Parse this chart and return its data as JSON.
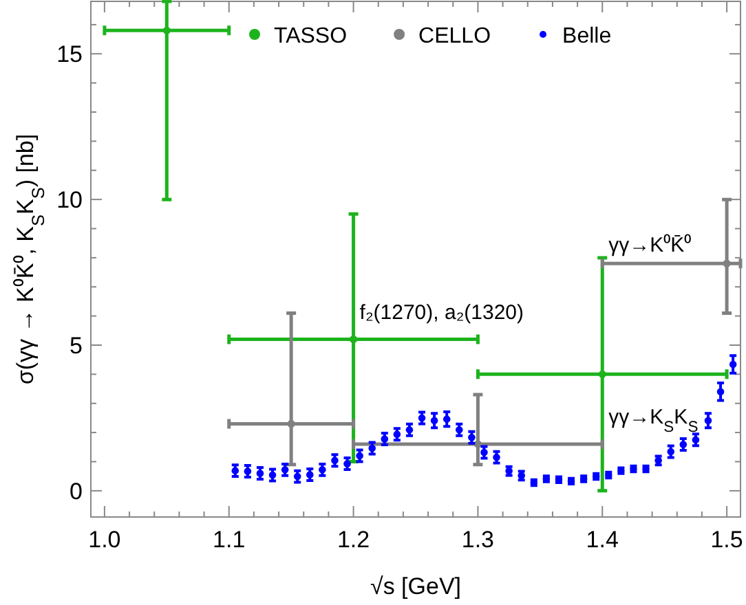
{
  "chart_data": {
    "type": "scatter",
    "xlabel": "√s [GeV]",
    "ylabel": "σ(γγ → K⁰K̄⁰, K$_{S}$K$_{S}$) [nb]",
    "annotations": [
      "f₂(1270),  a₂(1320)",
      "γγ→K⁰K̄⁰",
      "γγ→K$_{S}$K$_{S}$"
    ],
    "xlim": [
      0.989,
      1.511
    ],
    "ylim": [
      -0.9,
      16.8
    ],
    "xticks": [
      {
        "value": 1.0,
        "label": "1.0"
      },
      {
        "value": 1.02,
        "label": null
      },
      {
        "value": 1.04,
        "label": null
      },
      {
        "value": 1.06,
        "label": null
      },
      {
        "value": 1.08,
        "label": null
      },
      {
        "value": 1.1,
        "label": "1.1"
      },
      {
        "value": 1.12,
        "label": null
      },
      {
        "value": 1.14,
        "label": null
      },
      {
        "value": 1.16,
        "label": null
      },
      {
        "value": 1.18,
        "label": null
      },
      {
        "value": 1.2,
        "label": "1.2"
      },
      {
        "value": 1.22,
        "label": null
      },
      {
        "value": 1.24,
        "label": null
      },
      {
        "value": 1.26,
        "label": null
      },
      {
        "value": 1.28,
        "label": null
      },
      {
        "value": 1.3,
        "label": "1.3"
      },
      {
        "value": 1.32,
        "label": null
      },
      {
        "value": 1.34,
        "label": null
      },
      {
        "value": 1.36,
        "label": null
      },
      {
        "value": 1.38,
        "label": null
      },
      {
        "value": 1.4,
        "label": "1.4"
      },
      {
        "value": 1.42,
        "label": null
      },
      {
        "value": 1.44,
        "label": null
      },
      {
        "value": 1.46,
        "label": null
      },
      {
        "value": 1.48,
        "label": null
      },
      {
        "value": 1.5,
        "label": "1.5"
      }
    ],
    "yticks": [
      0,
      {
        "value": 1,
        "label": null
      },
      {
        "value": 2,
        "label": null
      },
      {
        "value": 3,
        "label": null
      },
      {
        "value": 4,
        "label": null
      },
      5,
      {
        "value": 6,
        "label": null
      },
      {
        "value": 7,
        "label": null
      },
      {
        "value": 8,
        "label": null
      },
      {
        "value": 9,
        "label": null
      },
      10,
      {
        "value": 11,
        "label": null
      },
      {
        "value": 12,
        "label": null
      },
      {
        "value": 13,
        "label": null
      },
      {
        "value": 14,
        "label": null
      },
      15,
      {
        "value": 16,
        "label": null
      }
    ],
    "legend": "top",
    "marker": "circle",
    "series": [
      {
        "name": "TASSO",
        "color": "#1db31d",
        "x": [
          1.05,
          1.2,
          1.4
        ],
        "values": [
          15.8,
          5.2,
          4.0
        ],
        "errors": [
          [
            10,
            16.8
          ],
          [
            1.0,
            9.5
          ],
          [
            0,
            8.0
          ]
        ],
        "xerrors": [
          0.05,
          0.1,
          0.1
        ]
      },
      {
        "name": "CELLO",
        "color": "#808080",
        "x": [
          1.15,
          1.3,
          1.5
        ],
        "values": [
          2.3,
          1.6,
          7.8
        ],
        "errors": [
          [
            0.9,
            6.1
          ],
          [
            0.9,
            3.3
          ],
          [
            6.1,
            10.0
          ]
        ],
        "xerrors": [
          0.05,
          0.1,
          [
            1.4,
            1.511
          ]
        ]
      },
      {
        "name": "Belle",
        "color": "#0000ff",
        "x": [
          1.105,
          1.115,
          1.125,
          1.135,
          1.145,
          1.155,
          1.165,
          1.175,
          1.185,
          1.195,
          1.205,
          1.215,
          1.225,
          1.235,
          1.245,
          1.255,
          1.265,
          1.275,
          1.285,
          1.295,
          1.305,
          1.315,
          1.325,
          1.335,
          1.345,
          1.355,
          1.365,
          1.375,
          1.385,
          1.395,
          1.405,
          1.415,
          1.425,
          1.435,
          1.445,
          1.455,
          1.465,
          1.475,
          1.485,
          1.495,
          1.505
        ],
        "values": [
          0.69,
          0.67,
          0.6,
          0.54,
          0.72,
          0.49,
          0.55,
          0.72,
          1.04,
          0.93,
          1.2,
          1.46,
          1.78,
          1.94,
          2.09,
          2.5,
          2.41,
          2.46,
          2.09,
          1.83,
          1.32,
          1.15,
          0.68,
          0.52,
          0.28,
          0.41,
          0.38,
          0.33,
          0.41,
          0.49,
          0.54,
          0.69,
          0.75,
          0.75,
          1.04,
          1.34,
          1.59,
          1.75,
          2.41,
          3.4,
          4.34
        ],
        "errors": [
          0.2,
          0.2,
          0.2,
          0.2,
          0.2,
          0.2,
          0.2,
          0.2,
          0.2,
          0.2,
          0.2,
          0.2,
          0.2,
          0.2,
          0.2,
          0.2,
          0.25,
          0.25,
          0.2,
          0.2,
          0.2,
          0.2,
          0.15,
          0.15,
          0.1,
          0.1,
          0.1,
          0.1,
          0.1,
          0.1,
          0.1,
          0.1,
          0.1,
          0.1,
          0.15,
          0.2,
          0.2,
          0.2,
          0.25,
          0.3,
          0.3
        ]
      }
    ]
  }
}
